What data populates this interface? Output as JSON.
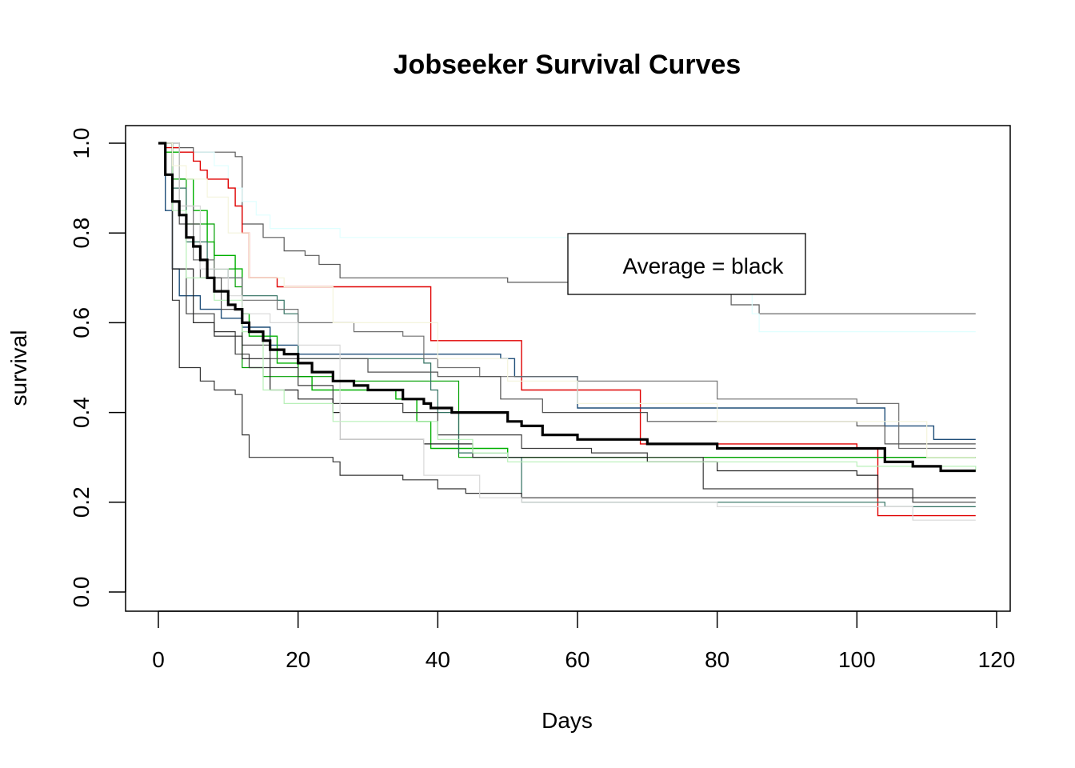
{
  "chart_data": {
    "type": "line",
    "title": "Jobseeker Survival Curves",
    "xlabel": "Days",
    "ylabel": "survival",
    "xlim": [
      0,
      120
    ],
    "ylim": [
      0,
      1
    ],
    "xticks": [
      0,
      20,
      40,
      60,
      80,
      100,
      120
    ],
    "yticks": [
      "0.0",
      "0.2",
      "0.4",
      "0.6",
      "0.8",
      "1.0"
    ],
    "grid": false,
    "step": true,
    "legend": {
      "text": "Average = black",
      "placement": "top-right"
    },
    "series": [
      {
        "color": "#595959",
        "width": 1.2,
        "points": [
          [
            0,
            1.0
          ],
          [
            2,
            0.99
          ],
          [
            5,
            0.98
          ],
          [
            11,
            0.97
          ],
          [
            12,
            0.82
          ],
          [
            15,
            0.79
          ],
          [
            18,
            0.76
          ],
          [
            21,
            0.75
          ],
          [
            23,
            0.73
          ],
          [
            26,
            0.7
          ],
          [
            50,
            0.69
          ],
          [
            62,
            0.69
          ],
          [
            82,
            0.64
          ],
          [
            86,
            0.62
          ],
          [
            117,
            0.62
          ]
        ]
      },
      {
        "color": "#e0ffff",
        "width": 1.2,
        "points": [
          [
            0,
            1.0
          ],
          [
            3,
            0.98
          ],
          [
            8,
            0.95
          ],
          [
            10,
            0.9
          ],
          [
            12,
            0.87
          ],
          [
            14,
            0.84
          ],
          [
            16,
            0.81
          ],
          [
            26,
            0.79
          ],
          [
            60,
            0.79
          ],
          [
            75,
            0.75
          ],
          [
            80,
            0.7
          ],
          [
            85,
            0.62
          ],
          [
            86,
            0.58
          ],
          [
            117,
            0.58
          ]
        ]
      },
      {
        "color": "#e00000",
        "width": 1.4,
        "points": [
          [
            0,
            1.0
          ],
          [
            1,
            0.99
          ],
          [
            3,
            0.98
          ],
          [
            5,
            0.96
          ],
          [
            6,
            0.94
          ],
          [
            7,
            0.92
          ],
          [
            10,
            0.9
          ],
          [
            11,
            0.86
          ],
          [
            12,
            0.8
          ],
          [
            13,
            0.7
          ],
          [
            17,
            0.68
          ],
          [
            37,
            0.68
          ],
          [
            39,
            0.56
          ],
          [
            49,
            0.56
          ],
          [
            52,
            0.45
          ],
          [
            65,
            0.45
          ],
          [
            69,
            0.33
          ],
          [
            100,
            0.32
          ],
          [
            103,
            0.17
          ],
          [
            117,
            0.17
          ]
        ]
      },
      {
        "color": "#1f4e79",
        "width": 1.4,
        "points": [
          [
            0,
            1.0
          ],
          [
            1,
            0.85
          ],
          [
            2,
            0.72
          ],
          [
            3,
            0.66
          ],
          [
            6,
            0.63
          ],
          [
            9,
            0.61
          ],
          [
            12,
            0.59
          ],
          [
            16,
            0.55
          ],
          [
            20,
            0.53
          ],
          [
            49,
            0.52
          ],
          [
            51,
            0.48
          ],
          [
            59,
            0.48
          ],
          [
            60,
            0.41
          ],
          [
            100,
            0.41
          ],
          [
            104,
            0.37
          ],
          [
            108,
            0.37
          ],
          [
            111,
            0.34
          ],
          [
            117,
            0.34
          ]
        ]
      },
      {
        "color": "#00b000",
        "width": 1.4,
        "points": [
          [
            0,
            1.0
          ],
          [
            1,
            0.98
          ],
          [
            3,
            0.92
          ],
          [
            5,
            0.85
          ],
          [
            7,
            0.78
          ],
          [
            8,
            0.75
          ],
          [
            11,
            0.72
          ],
          [
            12,
            0.62
          ],
          [
            13,
            0.57
          ],
          [
            17,
            0.51
          ],
          [
            20,
            0.48
          ],
          [
            22,
            0.45
          ],
          [
            30,
            0.45
          ],
          [
            34,
            0.43
          ],
          [
            37,
            0.38
          ],
          [
            39,
            0.32
          ],
          [
            50,
            0.3
          ],
          [
            69,
            0.3
          ],
          [
            100,
            0.3
          ],
          [
            104,
            0.3
          ],
          [
            117,
            0.3
          ]
        ]
      },
      {
        "color": "#00a000",
        "width": 1.2,
        "points": [
          [
            0,
            1.0
          ],
          [
            2,
            0.92
          ],
          [
            4,
            0.82
          ],
          [
            8,
            0.72
          ],
          [
            11,
            0.68
          ],
          [
            12,
            0.5
          ],
          [
            15,
            0.48
          ],
          [
            25,
            0.47
          ],
          [
            43,
            0.3
          ],
          [
            70,
            0.3
          ],
          [
            100,
            0.3
          ],
          [
            117,
            0.3
          ]
        ]
      },
      {
        "color": "#2f6f5f",
        "width": 1.2,
        "points": [
          [
            0,
            1.0
          ],
          [
            2,
            0.9
          ],
          [
            4,
            0.78
          ],
          [
            7,
            0.72
          ],
          [
            10,
            0.7
          ],
          [
            12,
            0.66
          ],
          [
            17,
            0.65
          ],
          [
            18,
            0.62
          ],
          [
            20,
            0.52
          ],
          [
            38,
            0.51
          ],
          [
            39,
            0.45
          ],
          [
            40,
            0.4
          ],
          [
            43,
            0.31
          ],
          [
            50,
            0.3
          ],
          [
            52,
            0.2
          ],
          [
            100,
            0.2
          ],
          [
            104,
            0.19
          ],
          [
            117,
            0.19
          ]
        ]
      },
      {
        "color": "#707070",
        "width": 1.2,
        "points": [
          [
            0,
            1.0
          ],
          [
            3,
            0.86
          ],
          [
            5,
            0.74
          ],
          [
            8,
            0.7
          ],
          [
            12,
            0.65
          ],
          [
            17,
            0.63
          ],
          [
            20,
            0.6
          ],
          [
            28,
            0.58
          ],
          [
            35,
            0.57
          ],
          [
            38,
            0.52
          ],
          [
            40,
            0.5
          ],
          [
            46,
            0.48
          ],
          [
            60,
            0.47
          ],
          [
            80,
            0.43
          ],
          [
            100,
            0.42
          ],
          [
            106,
            0.32
          ],
          [
            117,
            0.32
          ]
        ]
      },
      {
        "color": "#505050",
        "width": 1.2,
        "points": [
          [
            0,
            1.0
          ],
          [
            3,
            0.82
          ],
          [
            6,
            0.7
          ],
          [
            9,
            0.63
          ],
          [
            12,
            0.55
          ],
          [
            16,
            0.52
          ],
          [
            20,
            0.52
          ],
          [
            30,
            0.49
          ],
          [
            40,
            0.48
          ],
          [
            49,
            0.43
          ],
          [
            55,
            0.4
          ],
          [
            70,
            0.38
          ],
          [
            100,
            0.37
          ],
          [
            104,
            0.33
          ],
          [
            117,
            0.33
          ]
        ]
      },
      {
        "color": "#3c3c3c",
        "width": 1.2,
        "points": [
          [
            0,
            1.0
          ],
          [
            2,
            0.72
          ],
          [
            4,
            0.62
          ],
          [
            8,
            0.58
          ],
          [
            11,
            0.53
          ],
          [
            13,
            0.5
          ],
          [
            20,
            0.46
          ],
          [
            25,
            0.42
          ],
          [
            35,
            0.4
          ],
          [
            40,
            0.35
          ],
          [
            52,
            0.32
          ],
          [
            62,
            0.31
          ],
          [
            70,
            0.3
          ],
          [
            78,
            0.23
          ],
          [
            103,
            0.23
          ],
          [
            108,
            0.2
          ],
          [
            117,
            0.2
          ]
        ]
      },
      {
        "color": "#222222",
        "width": 1.2,
        "points": [
          [
            0,
            1.0
          ],
          [
            2,
            0.72
          ],
          [
            5,
            0.6
          ],
          [
            8,
            0.57
          ],
          [
            12,
            0.52
          ],
          [
            16,
            0.45
          ],
          [
            20,
            0.43
          ],
          [
            25,
            0.4
          ],
          [
            26,
            0.34
          ],
          [
            38,
            0.33
          ],
          [
            45,
            0.3
          ],
          [
            60,
            0.3
          ],
          [
            70,
            0.29
          ],
          [
            80,
            0.27
          ],
          [
            100,
            0.26
          ],
          [
            103,
            0.21
          ],
          [
            117,
            0.21
          ]
        ]
      },
      {
        "color": "#333333",
        "width": 1.2,
        "points": [
          [
            0,
            1.0
          ],
          [
            2,
            0.65
          ],
          [
            3,
            0.5
          ],
          [
            6,
            0.47
          ],
          [
            8,
            0.45
          ],
          [
            11,
            0.44
          ],
          [
            12,
            0.35
          ],
          [
            13,
            0.3
          ],
          [
            25,
            0.29
          ],
          [
            26,
            0.26
          ],
          [
            35,
            0.25
          ],
          [
            40,
            0.23
          ],
          [
            44,
            0.22
          ],
          [
            52,
            0.21
          ],
          [
            100,
            0.21
          ],
          [
            117,
            0.21
          ]
        ]
      },
      {
        "color": "#b8f0b8",
        "width": 1.2,
        "points": [
          [
            0,
            1.0
          ],
          [
            2,
            0.85
          ],
          [
            4,
            0.7
          ],
          [
            8,
            0.65
          ],
          [
            12,
            0.58
          ],
          [
            15,
            0.45
          ],
          [
            18,
            0.42
          ],
          [
            25,
            0.38
          ],
          [
            40,
            0.34
          ],
          [
            45,
            0.31
          ],
          [
            50,
            0.29
          ],
          [
            100,
            0.28
          ],
          [
            103,
            0.28
          ],
          [
            117,
            0.27
          ]
        ]
      },
      {
        "color": "#d8d8d8",
        "width": 1.2,
        "points": [
          [
            0,
            1.0
          ],
          [
            3,
            0.86
          ],
          [
            6,
            0.72
          ],
          [
            10,
            0.66
          ],
          [
            12,
            0.62
          ],
          [
            16,
            0.6
          ],
          [
            20,
            0.55
          ],
          [
            26,
            0.34
          ],
          [
            38,
            0.26
          ],
          [
            46,
            0.21
          ],
          [
            52,
            0.2
          ],
          [
            80,
            0.19
          ],
          [
            100,
            0.19
          ],
          [
            108,
            0.16
          ],
          [
            117,
            0.16
          ]
        ]
      },
      {
        "color": "#f4f4dc",
        "width": 1.2,
        "points": [
          [
            0,
            1.0
          ],
          [
            2,
            0.95
          ],
          [
            4,
            0.92
          ],
          [
            7,
            0.88
          ],
          [
            10,
            0.8
          ],
          [
            13,
            0.7
          ],
          [
            18,
            0.68
          ],
          [
            25,
            0.6
          ],
          [
            40,
            0.52
          ],
          [
            50,
            0.47
          ],
          [
            60,
            0.42
          ],
          [
            80,
            0.38
          ],
          [
            100,
            0.38
          ],
          [
            110,
            0.3
          ],
          [
            117,
            0.3
          ]
        ]
      },
      {
        "color": "#000000",
        "width": 3.2,
        "points": [
          [
            0,
            1.0
          ],
          [
            1,
            0.93
          ],
          [
            2,
            0.87
          ],
          [
            3,
            0.84
          ],
          [
            4,
            0.79
          ],
          [
            5,
            0.77
          ],
          [
            6,
            0.74
          ],
          [
            7,
            0.7
          ],
          [
            8,
            0.67
          ],
          [
            10,
            0.64
          ],
          [
            11,
            0.63
          ],
          [
            12,
            0.6
          ],
          [
            13,
            0.58
          ],
          [
            15,
            0.56
          ],
          [
            16,
            0.54
          ],
          [
            18,
            0.53
          ],
          [
            20,
            0.51
          ],
          [
            22,
            0.49
          ],
          [
            25,
            0.47
          ],
          [
            28,
            0.46
          ],
          [
            30,
            0.45
          ],
          [
            34,
            0.45
          ],
          [
            35,
            0.43
          ],
          [
            38,
            0.42
          ],
          [
            39,
            0.41
          ],
          [
            42,
            0.4
          ],
          [
            48,
            0.4
          ],
          [
            50,
            0.38
          ],
          [
            52,
            0.37
          ],
          [
            55,
            0.35
          ],
          [
            60,
            0.34
          ],
          [
            70,
            0.33
          ],
          [
            80,
            0.32
          ],
          [
            90,
            0.32
          ],
          [
            100,
            0.32
          ],
          [
            104,
            0.29
          ],
          [
            108,
            0.28
          ],
          [
            112,
            0.27
          ],
          [
            117,
            0.27
          ]
        ]
      }
    ]
  }
}
